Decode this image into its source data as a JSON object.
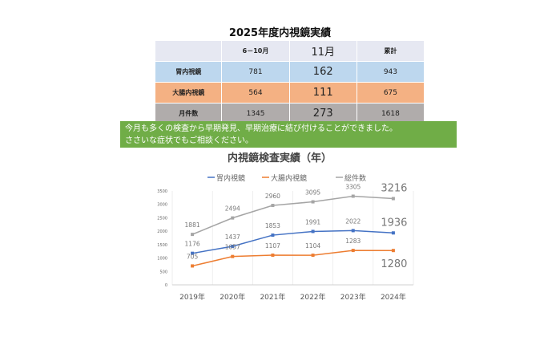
{
  "summary": {
    "title": "2025年度内視鏡実績",
    "headers": [
      "",
      "6－10月",
      "11月",
      "累計"
    ],
    "rows": [
      {
        "label": "胃内視鏡",
        "values": [
          "781",
          "162",
          "943"
        ]
      },
      {
        "label": "大腸内視鏡",
        "values": [
          "564",
          "111",
          "675"
        ]
      },
      {
        "label": "月件数",
        "values": [
          "1345",
          "273",
          "1618"
        ]
      }
    ]
  },
  "banner": {
    "line1": "今月も多くの検査から早期発見、早期治療に結び付けることができました。",
    "line2": "ささいな症状でもご相談ください。"
  },
  "chart_data": {
    "type": "line",
    "title": "内視鏡検査実績（年）",
    "categories": [
      "2019年",
      "2020年",
      "2021年",
      "2022年",
      "2023年",
      "2024年"
    ],
    "ylim": [
      0,
      3500
    ],
    "yticks": [
      "0",
      "500",
      "1000",
      "1500",
      "2000",
      "2500",
      "3000",
      "3500"
    ],
    "grid": true,
    "legend": "top",
    "series": [
      {
        "name": "胃内視鏡",
        "color": "#4472c4",
        "values": [
          1176,
          1437,
          1853,
          1991,
          2022,
          1936
        ]
      },
      {
        "name": "大腸内視鏡",
        "color": "#ed7d31",
        "values": [
          705,
          1057,
          1107,
          1104,
          1283,
          1280
        ]
      },
      {
        "name": "総件数",
        "color": "#a5a5a5",
        "values": [
          1881,
          2494,
          2960,
          3095,
          3305,
          3216
        ]
      }
    ]
  }
}
